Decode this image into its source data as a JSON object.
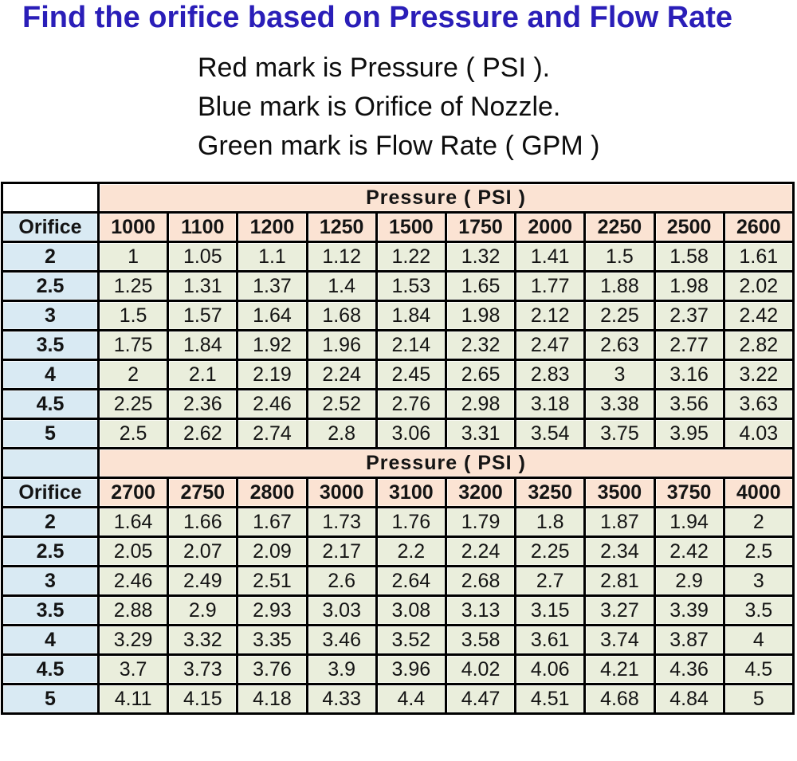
{
  "title": "Find the orifice based on Pressure and Flow Rate",
  "legend_lines": [
    "Red mark is Pressure ( PSI ).",
    "Blue mark is Orifice of Nozzle.",
    "Green mark is Flow Rate ( GPM )"
  ],
  "colors": {
    "title_blue": "#2a1eb8",
    "header_peach": "#fbe3d3",
    "orifice_blue": "#d9eaf3",
    "value_green": "#eaeedc",
    "grid_black": "#000000",
    "corner_white": "#ffffff"
  },
  "chart_data": {
    "type": "table",
    "title": "Find the orifice based on Pressure and Flow Rate",
    "col_group_label": "Pressure ( PSI )",
    "row_header_label": "Orifice",
    "value_meaning": "Flow Rate ( GPM )",
    "tables": [
      {
        "corner": "",
        "pressure_group_header": "Pressure ( PSI )",
        "orifice_label": "Orifice",
        "pressures": [
          "1000",
          "1100",
          "1200",
          "1250",
          "1500",
          "1750",
          "2000",
          "2250",
          "2500",
          "2600"
        ],
        "rows": [
          {
            "orifice": "2",
            "values": [
              "1",
              "1.05",
              "1.1",
              "1.12",
              "1.22",
              "1.32",
              "1.41",
              "1.5",
              "1.58",
              "1.61"
            ]
          },
          {
            "orifice": "2.5",
            "values": [
              "1.25",
              "1.31",
              "1.37",
              "1.4",
              "1.53",
              "1.65",
              "1.77",
              "1.88",
              "1.98",
              "2.02"
            ]
          },
          {
            "orifice": "3",
            "values": [
              "1.5",
              "1.57",
              "1.64",
              "1.68",
              "1.84",
              "1.98",
              "2.12",
              "2.25",
              "2.37",
              "2.42"
            ]
          },
          {
            "orifice": "3.5",
            "values": [
              "1.75",
              "1.84",
              "1.92",
              "1.96",
              "2.14",
              "2.32",
              "2.47",
              "2.63",
              "2.77",
              "2.82"
            ]
          },
          {
            "orifice": "4",
            "values": [
              "2",
              "2.1",
              "2.19",
              "2.24",
              "2.45",
              "2.65",
              "2.83",
              "3",
              "3.16",
              "3.22"
            ]
          },
          {
            "orifice": "4.5",
            "values": [
              "2.25",
              "2.36",
              "2.46",
              "2.52",
              "2.76",
              "2.98",
              "3.18",
              "3.38",
              "3.56",
              "3.63"
            ]
          },
          {
            "orifice": "5",
            "values": [
              "2.5",
              "2.62",
              "2.74",
              "2.8",
              "3.06",
              "3.31",
              "3.54",
              "3.75",
              "3.95",
              "4.03"
            ]
          }
        ]
      },
      {
        "corner": "",
        "pressure_group_header": "Pressure ( PSI )",
        "orifice_label": "Orifice",
        "pressures": [
          "2700",
          "2750",
          "2800",
          "3000",
          "3100",
          "3200",
          "3250",
          "3500",
          "3750",
          "4000"
        ],
        "rows": [
          {
            "orifice": "2",
            "values": [
              "1.64",
              "1.66",
              "1.67",
              "1.73",
              "1.76",
              "1.79",
              "1.8",
              "1.87",
              "1.94",
              "2"
            ]
          },
          {
            "orifice": "2.5",
            "values": [
              "2.05",
              "2.07",
              "2.09",
              "2.17",
              "2.2",
              "2.24",
              "2.25",
              "2.34",
              "2.42",
              "2.5"
            ]
          },
          {
            "orifice": "3",
            "values": [
              "2.46",
              "2.49",
              "2.51",
              "2.6",
              "2.64",
              "2.68",
              "2.7",
              "2.81",
              "2.9",
              "3"
            ]
          },
          {
            "orifice": "3.5",
            "values": [
              "2.88",
              "2.9",
              "2.93",
              "3.03",
              "3.08",
              "3.13",
              "3.15",
              "3.27",
              "3.39",
              "3.5"
            ]
          },
          {
            "orifice": "4",
            "values": [
              "3.29",
              "3.32",
              "3.35",
              "3.46",
              "3.52",
              "3.58",
              "3.61",
              "3.74",
              "3.87",
              "4"
            ]
          },
          {
            "orifice": "4.5",
            "values": [
              "3.7",
              "3.73",
              "3.76",
              "3.9",
              "3.96",
              "4.02",
              "4.06",
              "4.21",
              "4.36",
              "4.5"
            ]
          },
          {
            "orifice": "5",
            "values": [
              "4.11",
              "4.15",
              "4.18",
              "4.33",
              "4.4",
              "4.47",
              "4.51",
              "4.68",
              "4.84",
              "5"
            ]
          }
        ]
      }
    ]
  }
}
